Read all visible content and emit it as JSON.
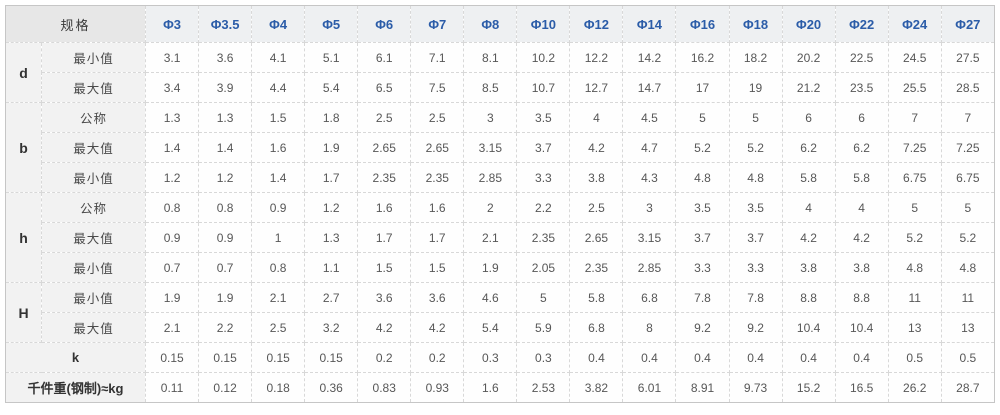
{
  "colors": {
    "header_text": "#2b5ca8",
    "header_bg": "#eef0f2",
    "corner_bg": "#e7e7e7",
    "label_bg": "#f2f2f2",
    "value_text": "#575757",
    "grid_line": "#d8d8d8"
  },
  "table": {
    "corner_label": "规格",
    "columns": [
      "Φ3",
      "Φ3.5",
      "Φ4",
      "Φ5",
      "Φ6",
      "Φ7",
      "Φ8",
      "Φ10",
      "Φ12",
      "Φ14",
      "Φ16",
      "Φ18",
      "Φ20",
      "Φ22",
      "Φ24",
      "Φ27"
    ],
    "sections": [
      {
        "group": "d",
        "rows": [
          {
            "label": "最小值",
            "values": [
              "3.1",
              "3.6",
              "4.1",
              "5.1",
              "6.1",
              "7.1",
              "8.1",
              "10.2",
              "12.2",
              "14.2",
              "16.2",
              "18.2",
              "20.2",
              "22.5",
              "24.5",
              "27.5"
            ]
          },
          {
            "label": "最大值",
            "values": [
              "3.4",
              "3.9",
              "4.4",
              "5.4",
              "6.5",
              "7.5",
              "8.5",
              "10.7",
              "12.7",
              "14.7",
              "17",
              "19",
              "21.2",
              "23.5",
              "25.5",
              "28.5"
            ]
          }
        ]
      },
      {
        "group": "b",
        "rows": [
          {
            "label": "公称",
            "values": [
              "1.3",
              "1.3",
              "1.5",
              "1.8",
              "2.5",
              "2.5",
              "3",
              "3.5",
              "4",
              "4.5",
              "5",
              "5",
              "6",
              "6",
              "7",
              "7"
            ]
          },
          {
            "label": "最大值",
            "values": [
              "1.4",
              "1.4",
              "1.6",
              "1.9",
              "2.65",
              "2.65",
              "3.15",
              "3.7",
              "4.2",
              "4.7",
              "5.2",
              "5.2",
              "6.2",
              "6.2",
              "7.25",
              "7.25"
            ]
          },
          {
            "label": "最小值",
            "values": [
              "1.2",
              "1.2",
              "1.4",
              "1.7",
              "2.35",
              "2.35",
              "2.85",
              "3.3",
              "3.8",
              "4.3",
              "4.8",
              "4.8",
              "5.8",
              "5.8",
              "6.75",
              "6.75"
            ]
          }
        ]
      },
      {
        "group": "h",
        "rows": [
          {
            "label": "公称",
            "values": [
              "0.8",
              "0.8",
              "0.9",
              "1.2",
              "1.6",
              "1.6",
              "2",
              "2.2",
              "2.5",
              "3",
              "3.5",
              "3.5",
              "4",
              "4",
              "5",
              "5"
            ]
          },
          {
            "label": "最大值",
            "values": [
              "0.9",
              "0.9",
              "1",
              "1.3",
              "1.7",
              "1.7",
              "2.1",
              "2.35",
              "2.65",
              "3.15",
              "3.7",
              "3.7",
              "4.2",
              "4.2",
              "5.2",
              "5.2"
            ]
          },
          {
            "label": "最小值",
            "values": [
              "0.7",
              "0.7",
              "0.8",
              "1.1",
              "1.5",
              "1.5",
              "1.9",
              "2.05",
              "2.35",
              "2.85",
              "3.3",
              "3.3",
              "3.8",
              "3.8",
              "4.8",
              "4.8"
            ]
          }
        ]
      },
      {
        "group": "H",
        "rows": [
          {
            "label": "最小值",
            "values": [
              "1.9",
              "1.9",
              "2.1",
              "2.7",
              "3.6",
              "3.6",
              "4.6",
              "5",
              "5.8",
              "6.8",
              "7.8",
              "7.8",
              "8.8",
              "8.8",
              "11",
              "11"
            ]
          },
          {
            "label": "最大值",
            "values": [
              "2.1",
              "2.2",
              "2.5",
              "3.2",
              "4.2",
              "4.2",
              "5.4",
              "5.9",
              "6.8",
              "8",
              "9.2",
              "9.2",
              "10.4",
              "10.4",
              "13",
              "13"
            ]
          }
        ]
      },
      {
        "group": "",
        "rows": [
          {
            "label": "k",
            "wide": true,
            "values": [
              "0.15",
              "0.15",
              "0.15",
              "0.15",
              "0.2",
              "0.2",
              "0.3",
              "0.3",
              "0.4",
              "0.4",
              "0.4",
              "0.4",
              "0.4",
              "0.4",
              "0.5",
              "0.5"
            ]
          }
        ]
      },
      {
        "group": "",
        "rows": [
          {
            "label": "千件重(钢制)≈kg",
            "wide": true,
            "values": [
              "0.11",
              "0.12",
              "0.18",
              "0.36",
              "0.83",
              "0.93",
              "1.6",
              "2.53",
              "3.82",
              "6.01",
              "8.91",
              "9.73",
              "15.2",
              "16.5",
              "26.2",
              "28.7"
            ]
          }
        ]
      }
    ]
  }
}
